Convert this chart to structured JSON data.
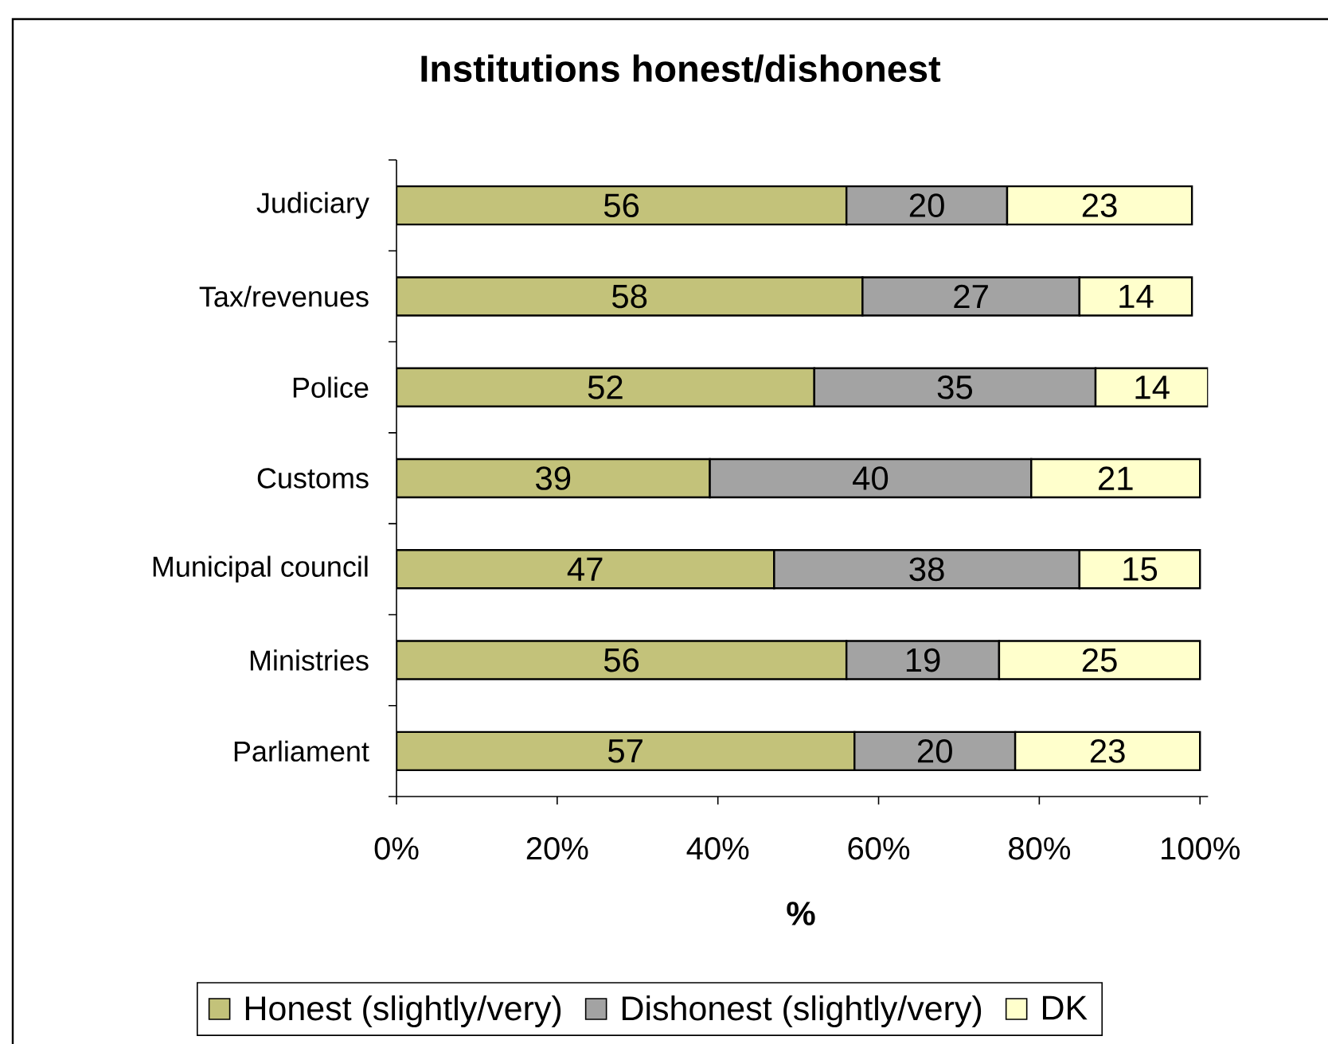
{
  "chart_data": {
    "type": "bar",
    "orientation": "horizontal",
    "stacked": true,
    "title": "Institutions honest/dishonest",
    "xlabel": "%",
    "categories": [
      "Judiciary",
      "Tax/revenues",
      "Police",
      "Customs",
      "Municipal council",
      "Ministries",
      "Parliament"
    ],
    "series": [
      {
        "name": "Honest (slightly/very)",
        "color": "#c3c27a",
        "values": [
          56,
          58,
          52,
          39,
          47,
          56,
          57
        ]
      },
      {
        "name": "Dishonest (slightly/very)",
        "color": "#a3a3a3",
        "values": [
          20,
          27,
          35,
          40,
          38,
          19,
          20
        ]
      },
      {
        "name": "DK",
        "color": "#ffffcc",
        "values": [
          23,
          14,
          14,
          21,
          15,
          25,
          23
        ]
      }
    ],
    "xlim": [
      0,
      101
    ],
    "xticks": [
      {
        "value": 0,
        "label": "0%"
      },
      {
        "value": 20,
        "label": "20%"
      },
      {
        "value": 40,
        "label": "40%"
      },
      {
        "value": 60,
        "label": "60%"
      },
      {
        "value": 80,
        "label": "80%"
      },
      {
        "value": 100,
        "label": "100%"
      }
    ],
    "data_labels": true,
    "legend": "bottom"
  }
}
